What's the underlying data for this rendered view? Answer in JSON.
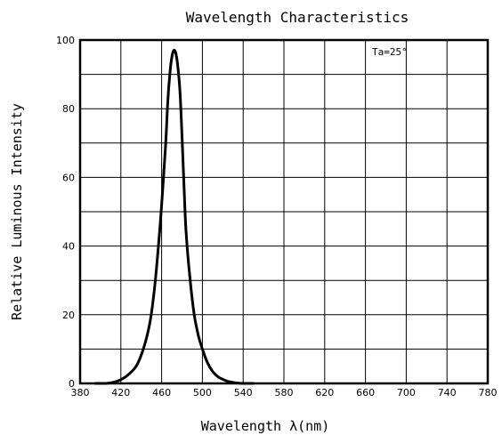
{
  "chart_data": {
    "type": "line",
    "title": "Wavelength Characteristics",
    "xlabel": "Wavelength λ(nm)",
    "ylabel": "Relative Luminous Intensity",
    "annotation": "Ta=25°",
    "xlim": [
      380,
      780
    ],
    "ylim": [
      0,
      100
    ],
    "x_ticks": [
      380,
      420,
      460,
      500,
      540,
      580,
      620,
      660,
      700,
      740,
      780
    ],
    "x_tick_labels": [
      "380",
      "420",
      "460",
      "500",
      "540",
      "580",
      "620",
      "660",
      "700",
      "740",
      "780"
    ],
    "y_ticks": [
      0,
      20,
      40,
      60,
      80,
      100
    ],
    "y_tick_labels": [
      "0",
      "20",
      "40",
      "60",
      "80",
      "100"
    ],
    "grid": true,
    "series": [
      {
        "x": [
          395,
          405,
          415,
          425,
          435,
          442,
          448,
          452,
          456,
          460,
          464,
          466,
          468,
          470,
          472,
          474,
          476,
          478,
          480,
          482,
          484,
          488,
          492,
          496,
          500,
          505,
          510,
          515,
          520,
          525,
          530,
          535,
          540,
          545,
          550
        ],
        "values": [
          0,
          0,
          0.5,
          2,
          5,
          10,
          17,
          25,
          37,
          52,
          70,
          82,
          90,
          95,
          97,
          96,
          92,
          85,
          72,
          57,
          44,
          30,
          20,
          14,
          10,
          6,
          3.5,
          2,
          1.2,
          0.6,
          0.3,
          0.1,
          0,
          0,
          0
        ]
      }
    ]
  }
}
